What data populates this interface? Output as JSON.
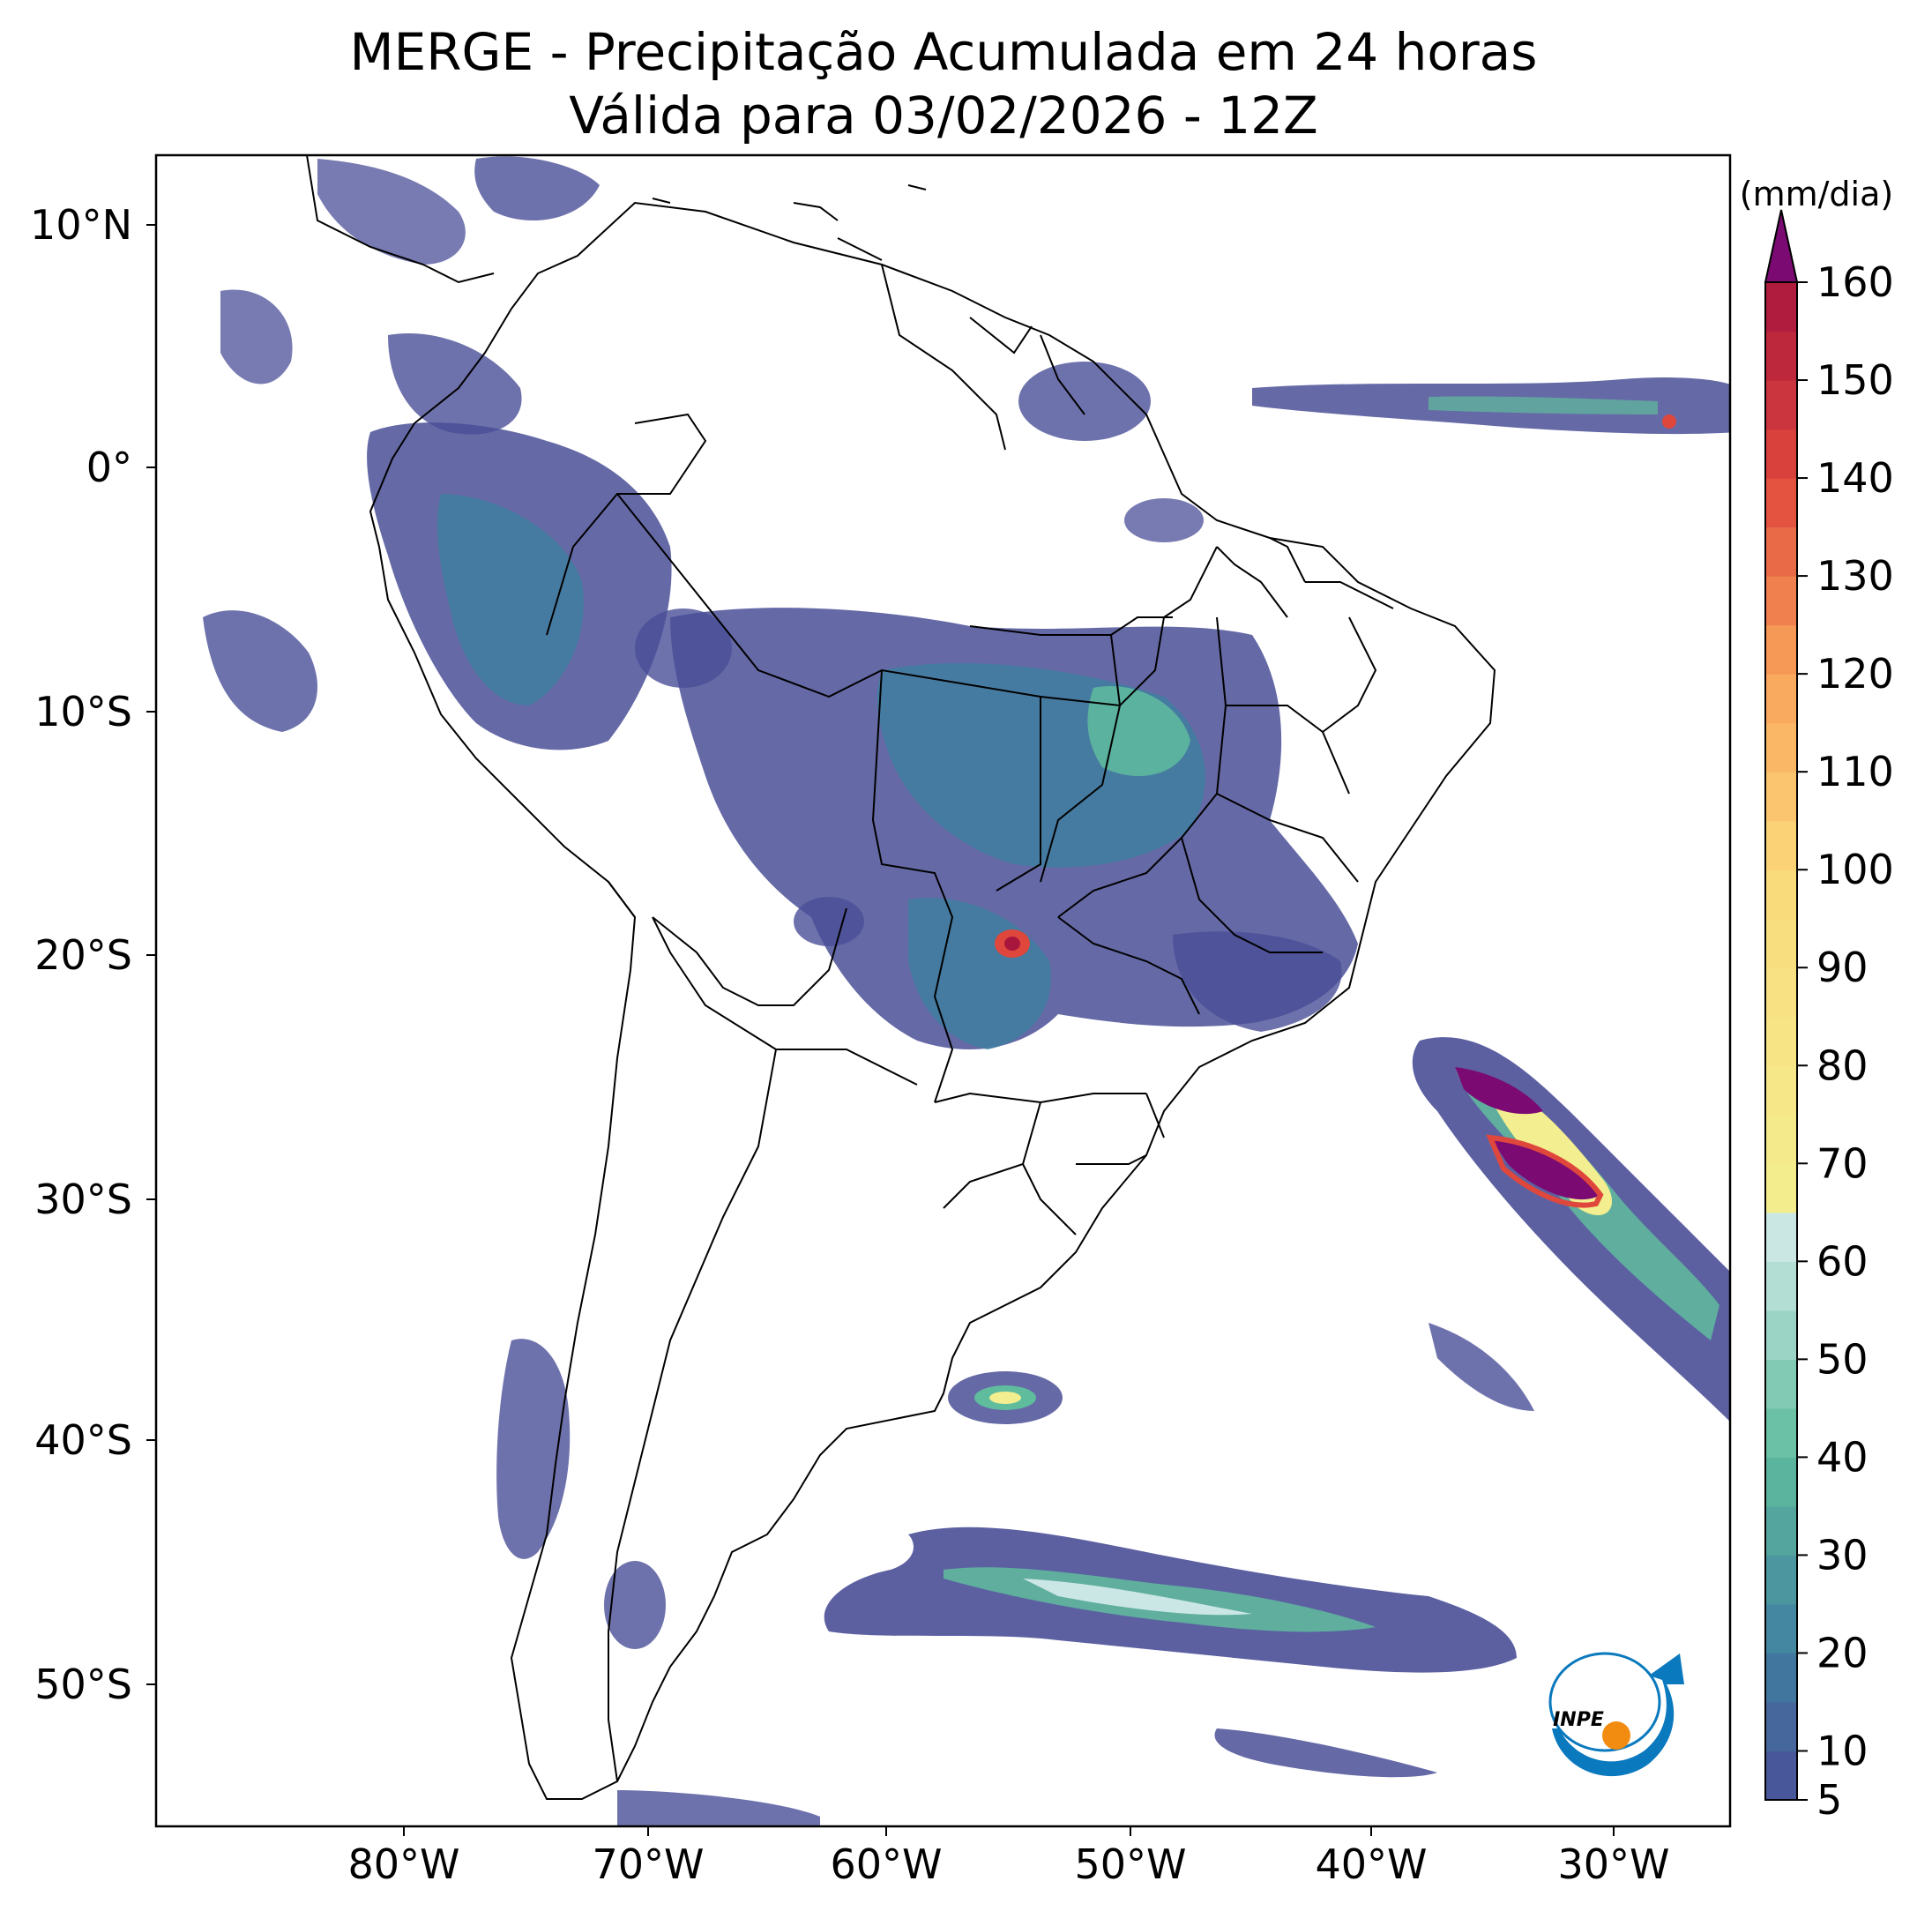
{
  "title": {
    "line1": "MERGE - Precipitação Acumulada em 24 horas",
    "line2": "Válida para 03/02/2026 - 12Z"
  },
  "axes": {
    "lat_labels": [
      "10°N",
      "0°",
      "10°S",
      "20°S",
      "30°S",
      "40°S",
      "50°S"
    ],
    "lon_labels": [
      "80°W",
      "70°W",
      "60°W",
      "50°W",
      "40°W",
      "30°W"
    ]
  },
  "colorbar": {
    "unit": "(mm/dia)",
    "tick_labels": [
      "5",
      "10",
      "20",
      "30",
      "40",
      "50",
      "60",
      "70",
      "80",
      "90",
      "100",
      "110",
      "120",
      "130",
      "140",
      "150",
      "160"
    ],
    "colors": {
      "low": "#4a4f97",
      "mid_low": "#3f7fa0",
      "mid": "#5fbc9d",
      "mid_high": "#d6ecec",
      "yellow": "#f3ee8f",
      "orange": "#f9a35a",
      "red": "#e0473c",
      "dark_red": "#a8163e",
      "over": "#7b0a73"
    }
  },
  "logo": {
    "text": "INPE",
    "colors": {
      "blue": "#0a79bd",
      "orange": "#f28c10"
    }
  }
}
